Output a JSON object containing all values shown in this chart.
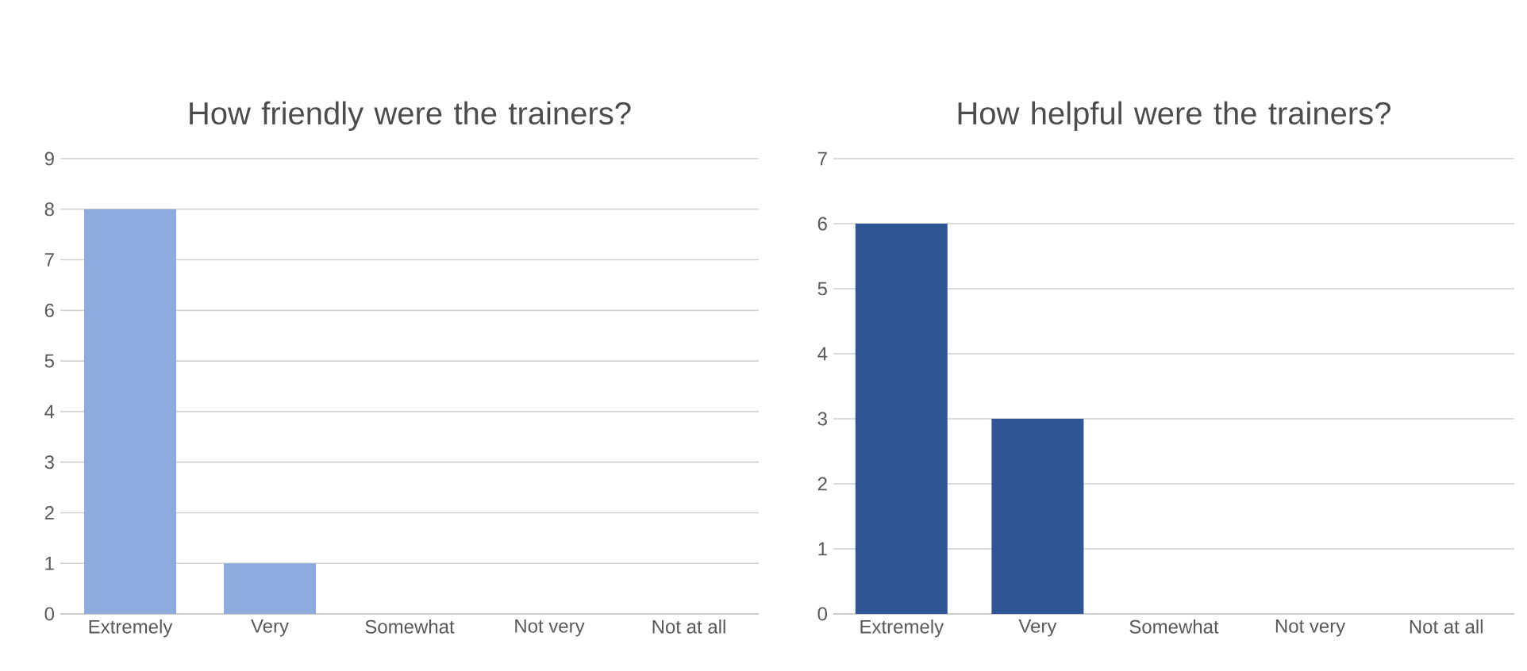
{
  "chart_data": [
    {
      "type": "bar",
      "title": "How friendly were the trainers?",
      "categories": [
        "Extremely",
        "Very",
        "Somewhat",
        "Not very",
        "Not at all"
      ],
      "values": [
        8,
        1,
        0,
        0,
        0
      ],
      "color": "#8faadc",
      "ylim": [
        0,
        9
      ],
      "yticks": [
        0,
        1,
        2,
        3,
        4,
        5,
        6,
        7,
        8,
        9
      ],
      "grid": "y"
    },
    {
      "type": "bar",
      "title": "How helpful were the trainers?",
      "categories": [
        "Extremely",
        "Very",
        "Somewhat",
        "Not very",
        "Not at all"
      ],
      "values": [
        6,
        3,
        0,
        0,
        0
      ],
      "color": "#2f5597",
      "ylim": [
        0,
        7
      ],
      "yticks": [
        0,
        1,
        2,
        3,
        4,
        5,
        6,
        7
      ],
      "grid": "y"
    }
  ]
}
